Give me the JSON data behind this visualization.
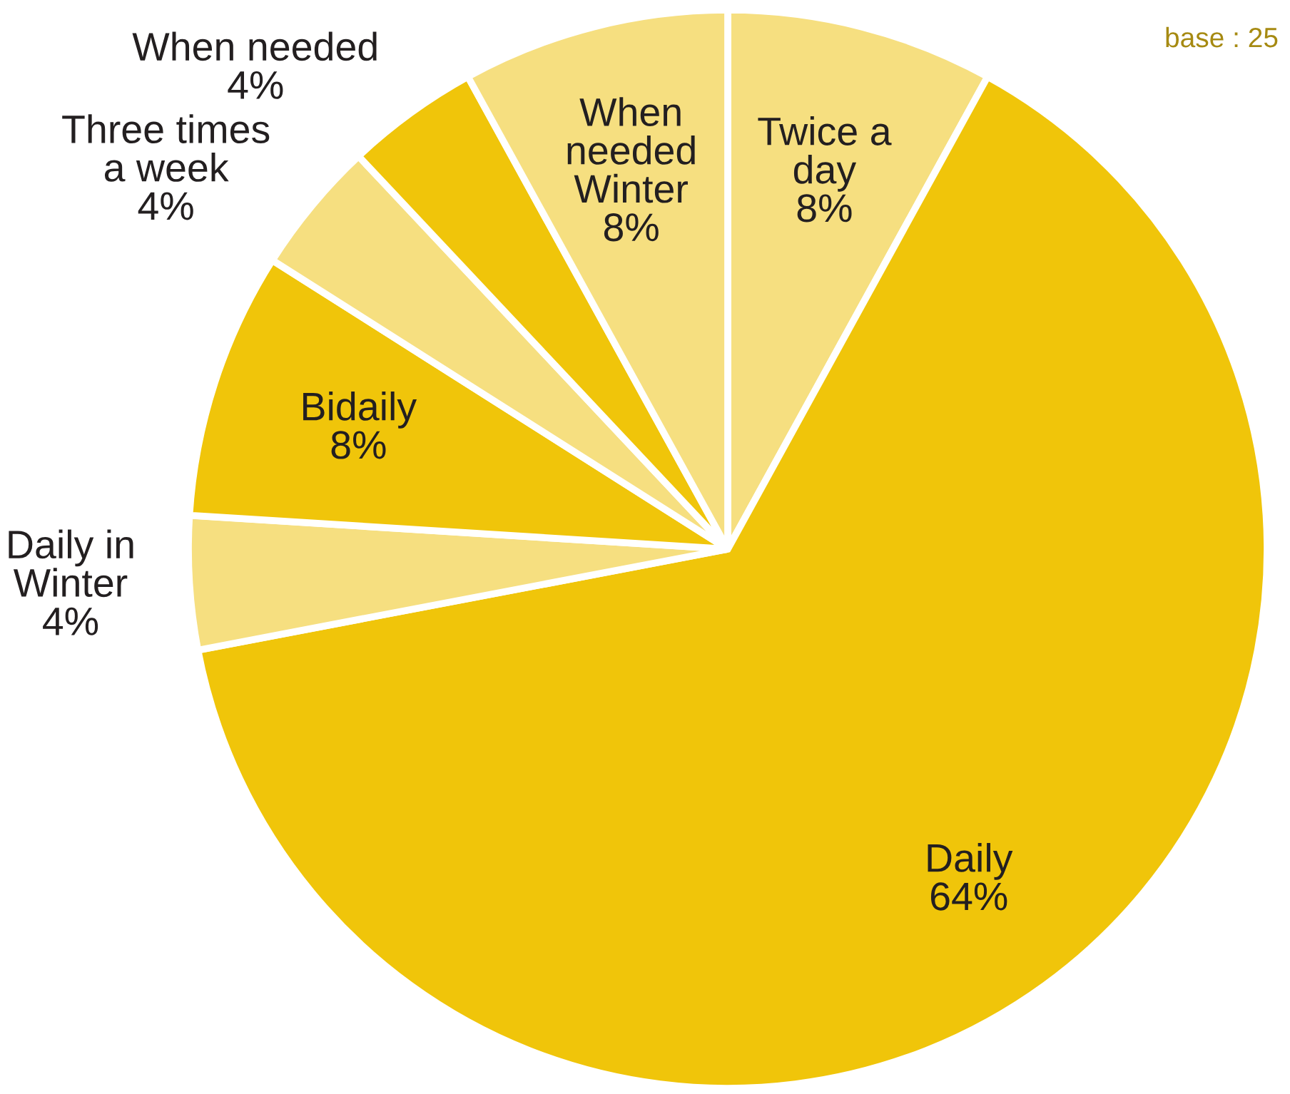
{
  "chart_data": {
    "type": "pie",
    "categories": [
      "Twice a day",
      "Daily",
      "Daily in Winter",
      "Bidaily",
      "Three times a week",
      "When needed",
      "When needed Winter"
    ],
    "values": [
      8,
      64,
      4,
      8,
      4,
      4,
      8
    ],
    "colors": [
      "#f6df80",
      "#f0c50a",
      "#f6df80",
      "#f0c50a",
      "#f6df80",
      "#f0c50a",
      "#f6df80"
    ],
    "value_labels": [
      "8%",
      "64%",
      "4%",
      "8%",
      "4%",
      "4%",
      "8%"
    ],
    "annotations": [
      "base : 25"
    ]
  }
}
